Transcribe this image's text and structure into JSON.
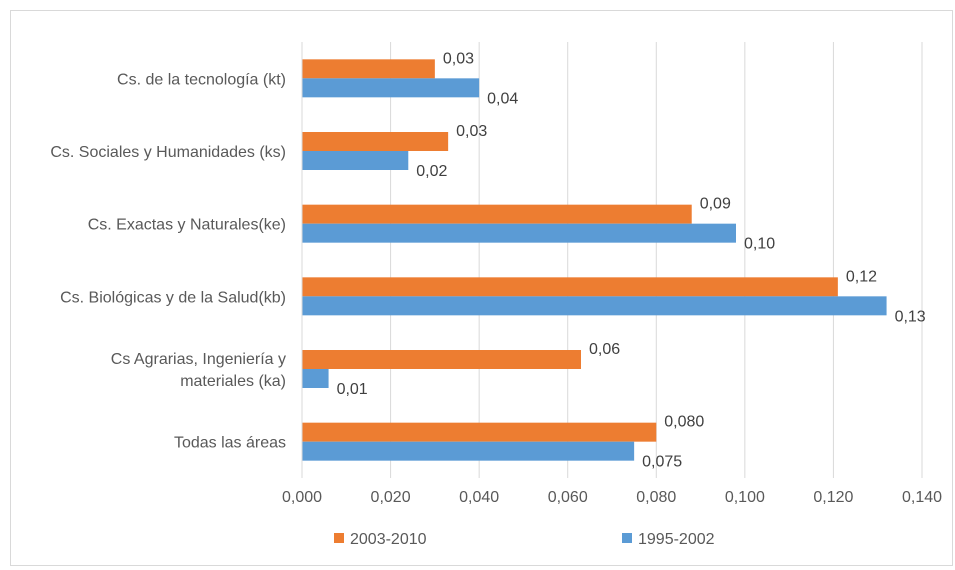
{
  "chart_data": {
    "type": "bar",
    "orientation": "horizontal",
    "title": "",
    "xlabel": "",
    "ylabel": "",
    "xlim": [
      0,
      0.14
    ],
    "x_ticks": [
      "0,000",
      "0,020",
      "0,040",
      "0,060",
      "0,080",
      "0,100",
      "0,120",
      "0,140"
    ],
    "grid": "vertical",
    "legend_position": "bottom",
    "categories": [
      [
        "Cs. de la tecnología (kt)"
      ],
      [
        "Cs. Sociales y Humanidades (ks)"
      ],
      [
        "Cs. Exactas y Naturales(ke)"
      ],
      [
        "Cs. Biológicas y de la Salud(kb)"
      ],
      [
        "Cs Agrarias, Ingeniería y",
        "materiales (ka)"
      ],
      [
        "Todas las áreas"
      ]
    ],
    "series": [
      {
        "name": "2003-2010",
        "color": "#ed7d31",
        "values": [
          0.03,
          0.033,
          0.088,
          0.121,
          0.063,
          0.08
        ],
        "labels": [
          "0,03",
          "0,03",
          "0,09",
          "0,12",
          "0,06",
          "0,080"
        ]
      },
      {
        "name": "1995-2002",
        "color": "#5b9bd5",
        "values": [
          0.04,
          0.024,
          0.098,
          0.132,
          0.006,
          0.075
        ],
        "labels": [
          "0,04",
          "0,02",
          "0,10",
          "0,13",
          "0,01",
          "0,075"
        ]
      }
    ]
  }
}
